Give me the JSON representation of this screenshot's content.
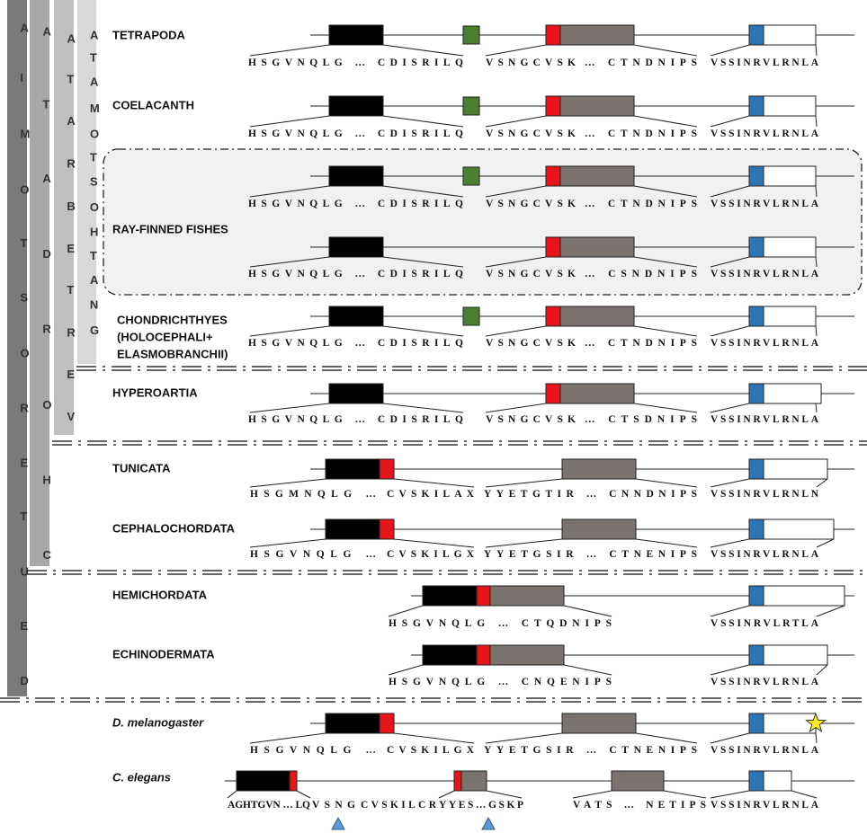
{
  "clades": [
    {
      "name": "DEUTEROSTOMIA"
    },
    {
      "name": "CHORDATA"
    },
    {
      "name": "VERTEBRATA"
    },
    {
      "name": "GNATHOSTOMATA"
    }
  ],
  "taxa": [
    {
      "label": [
        "TETRAPODA"
      ],
      "rows": [
        {
          "segments": [
            {
              "text": "HSGVNQLG … CDISRILQ"
            },
            {
              "text": "VSNGCVSK",
              "color": "#e8141b"
            },
            {
              "text": "… CTNDNIPS"
            },
            {
              "text": "VSSINRVLRNLA"
            }
          ]
        }
      ]
    },
    {
      "label": [
        "COELACANTH"
      ],
      "rows": [
        {
          "segments": [
            {
              "text": "HSGVNQLG … CDISRILQ"
            },
            {
              "text": "VSNGCVSK",
              "color": "#e8141b"
            },
            {
              "text": "… CTNDNIPS"
            },
            {
              "text": "VSSINRVLRNLA"
            }
          ]
        }
      ]
    },
    {
      "label": [
        "RAY-FINNED FISHES"
      ],
      "rows": [
        {
          "segments": [
            {
              "text": "HSGVNQLG … CDISRILQ"
            },
            {
              "text": "VSNGCVSK",
              "color": "#e8141b"
            },
            {
              "text": "… CTNDNIPS"
            },
            {
              "text": "VSSINRVLRNLA"
            }
          ]
        },
        {
          "segments": [
            {
              "text": "HSGVNQLG … CDISRILQ"
            },
            {
              "text": "VSNGCVSK",
              "color": "#e8141b"
            },
            {
              "text": "… CSNDNIPS"
            },
            {
              "text": "VSSINRVLRNLA"
            }
          ]
        }
      ]
    },
    {
      "label": [
        "CHONDRICHTHYES",
        "(HOLOCEPHALI+",
        "ELASMOBRANCHII)"
      ],
      "rows": [
        {
          "segments": [
            {
              "text": "HSGVNQLG … CDISRILQ"
            },
            {
              "text": "VSNGCVSK",
              "color": "#e8141b"
            },
            {
              "text": "… CTNDNIPS"
            },
            {
              "text": "VSSINRVLRNLA"
            }
          ]
        }
      ]
    },
    {
      "label": [
        "HYPEROARTIA"
      ],
      "rows": [
        {
          "segments": [
            {
              "text": "HSGVNQLG … CDISRILQ"
            },
            {
              "text": "VSNGCVSK",
              "color": "#e8141b"
            },
            {
              "text": "… CTSDNIPS"
            },
            {
              "text": "VSSINRVLRNLA"
            }
          ]
        }
      ]
    },
    {
      "label": [
        "TUNICATA"
      ],
      "rows": [
        {
          "segments": [
            {
              "text": "HSGMNQLG …"
            },
            {
              "text": "CVSKILAX",
              "color": "#e8141b"
            },
            {
              "text": "YYETGTIR … CNNDNIPS"
            },
            {
              "text": "VSSINRVLRNLN"
            }
          ]
        }
      ]
    },
    {
      "label": [
        "CEPHALOCHORDATA"
      ],
      "rows": [
        {
          "segments": [
            {
              "text": "HSGVNQLG …"
            },
            {
              "text": "CVSKILGX",
              "color": "#e8141b"
            },
            {
              "text": "YYETGSIR … CTNENIPS"
            },
            {
              "text": "VSSINRVLRNLA"
            }
          ]
        }
      ]
    },
    {
      "label": [
        "HEMICHORDATA"
      ],
      "rows": [
        {
          "segments": [
            {
              "text": "HSGVNQLG … CTQDNIPS"
            },
            {
              "text": "VSSINRVLRTLA"
            }
          ]
        }
      ]
    },
    {
      "label": [
        "ECHINODERMATA"
      ],
      "rows": [
        {
          "segments": [
            {
              "text": "HSGVNQLG … CNQENIPS"
            },
            {
              "text": "VSSINRVLRNLA"
            }
          ]
        }
      ]
    },
    {
      "label": [
        "D. melanogaster"
      ],
      "rows": [
        {
          "segments": [
            {
              "text": "HSGVNQLG …"
            },
            {
              "text": "CVSKILGX",
              "color": "#e8141b"
            },
            {
              "text": "YYETGSIR … CTNENIPS"
            },
            {
              "text": "VSSINRVLRNLA"
            }
          ]
        }
      ]
    },
    {
      "label": [
        "C. elegans"
      ],
      "rows": [
        {
          "segments": [
            {
              "text": "AGHTGVN … LQ"
            },
            {
              "text": "VSNG",
              "color": "#e8141b"
            },
            {
              "text": "CVSKILCR",
              "color": "#e8141b"
            },
            {
              "text": "YYES…GSKP"
            },
            {
              "text": "VATS … NETIPS"
            },
            {
              "text": "VSSINRVLRNLA"
            }
          ]
        }
      ]
    }
  ]
}
